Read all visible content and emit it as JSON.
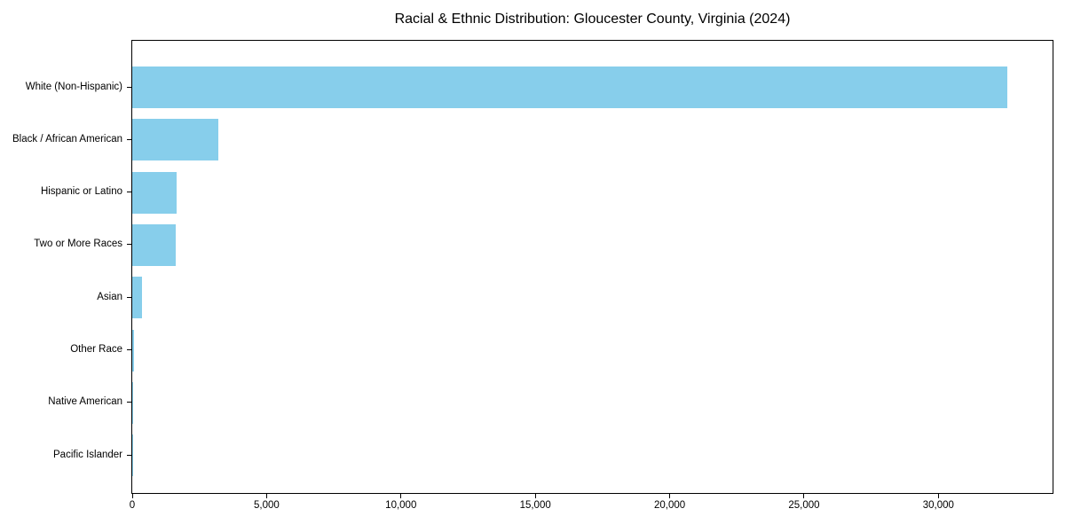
{
  "chart_data": {
    "type": "bar",
    "orientation": "horizontal",
    "title": "Racial & Ethnic Distribution: Gloucester County, Virginia (2024)",
    "categories": [
      "White (Non-Hispanic)",
      "Black / African American",
      "Hispanic or Latino",
      "Two or More Races",
      "Asian",
      "Other Race",
      "Native American",
      "Pacific Islander"
    ],
    "values": [
      32550,
      3210,
      1660,
      1620,
      350,
      80,
      30,
      10
    ],
    "xlabel": "",
    "ylabel": "",
    "xlim": [
      0,
      34250
    ],
    "x_ticks": [
      0,
      5000,
      10000,
      15000,
      20000,
      25000,
      30000
    ],
    "x_tick_labels": [
      "0",
      "5,000",
      "10,000",
      "15,000",
      "20,000",
      "25,000",
      "30,000"
    ],
    "grid": false,
    "legend": null,
    "bar_color": "#87CEEB",
    "text_color": "#000000",
    "spine_color": "#000000",
    "background_color": "#ffffff"
  }
}
